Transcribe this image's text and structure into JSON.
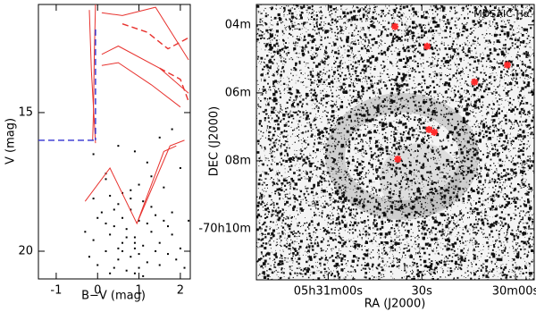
{
  "chart_data": [
    {
      "type": "scatter",
      "xlabel": "B−V (mag)",
      "ylabel": "V (mag)",
      "xlim": [
        -1.43,
        2.24
      ],
      "ylim": [
        21.0,
        11.1
      ],
      "xticks": [
        -1,
        0,
        1,
        2
      ],
      "yticks": [
        15,
        20
      ],
      "series": [
        {
          "kind": "points",
          "color": "#000000",
          "x": [
            0.9,
            0.7,
            1.1,
            0.5,
            1.3,
            0.8,
            0.6,
            1.0,
            1.2,
            0.4,
            0.3,
            1.5,
            1.7,
            0.2,
            0.0,
            -0.1,
            0.1,
            1.9,
            2.0,
            1.4,
            0.9,
            0.7,
            1.1,
            0.5,
            1.3,
            0.8,
            1.6,
            0.6,
            1.0,
            0.3,
            -0.2,
            1.8,
            2.1,
            0.4,
            1.2,
            0.9,
            0.2,
            1.5,
            0.7,
            1.1,
            0.0,
            0.5,
            1.0,
            1.4,
            1.8,
            0.3,
            0.8,
            -0.3,
            1.6,
            0.6,
            0.2,
            0.9,
            1.3,
            -0.1,
            0.4,
            1.7,
            2.2,
            1.0,
            0.6,
            0.8,
            1.8,
            0.5,
            1.2,
            -0.1,
            2.0,
            0.2,
            1.5,
            0.9
          ],
          "y": [
            19.5,
            19.2,
            19.8,
            19.9,
            19.3,
            20.2,
            18.8,
            18.9,
            20.4,
            20.6,
            19.4,
            19.7,
            20.1,
            20.0,
            20.5,
            19.6,
            18.6,
            20.3,
            19.9,
            18.7,
            20.8,
            20.7,
            20.9,
            18.3,
            18.4,
            18.1,
            18.9,
            17.9,
            17.6,
            18.0,
            20.2,
            19.4,
            20.6,
            19.1,
            19.0,
            19.7,
            19.0,
            20.5,
            19.5,
            18.2,
            18.8,
            20.3,
            20.1,
            20.0,
            18.6,
            20.8,
            17.8,
            19.3,
            17.7,
            20.0,
            17.4,
            19.9,
            17.3,
            18.1,
            18.5,
            19.1,
            18.9,
            20.6,
            19.7,
            18.5,
            15.6,
            16.2,
            16.8,
            16.5,
            17.0,
            17.2,
            15.9,
            16.4
          ]
        },
        {
          "kind": "line",
          "color": "#e8322e",
          "dash": false,
          "x": [
            -0.05,
            -0.08,
            -0.1,
            -0.12
          ],
          "y": [
            11.1,
            13.0,
            15.0,
            16.0
          ]
        },
        {
          "kind": "line",
          "color": "#e8322e",
          "dash": false,
          "x": [
            -0.2,
            -0.15,
            -0.05
          ],
          "y": [
            11.3,
            13.5,
            16.1
          ]
        },
        {
          "kind": "line",
          "color": "#e8322e",
          "dash": false,
          "x": [
            0.1,
            0.6,
            1.4,
            2.2
          ],
          "y": [
            11.4,
            11.5,
            11.2,
            13.1
          ]
        },
        {
          "kind": "line",
          "color": "#e8322e",
          "dash": false,
          "x": [
            0.1,
            0.5,
            1.5,
            2.2
          ],
          "y": [
            12.9,
            12.6,
            13.4,
            14.3
          ]
        },
        {
          "kind": "line",
          "color": "#e8322e",
          "dash": false,
          "x": [
            0.1,
            0.5,
            1.3,
            2.0
          ],
          "y": [
            13.3,
            13.2,
            14.0,
            14.8
          ]
        },
        {
          "kind": "line",
          "color": "#e8322e",
          "dash": true,
          "x": [
            0.6,
            1.2,
            1.7,
            2.2
          ],
          "y": [
            11.8,
            12.1,
            12.7,
            12.3
          ]
        },
        {
          "kind": "line",
          "color": "#e8322e",
          "dash": true,
          "x": [
            1.5,
            2.0,
            2.2
          ],
          "y": [
            13.4,
            13.8,
            14.6
          ]
        },
        {
          "kind": "line",
          "color": "#e8322e",
          "dash": false,
          "x": [
            -0.3,
            0.3,
            0.95,
            1.6,
            1.9
          ],
          "y": [
            18.2,
            17.0,
            19.0,
            16.4,
            16.2
          ]
        },
        {
          "kind": "line",
          "color": "#e8322e",
          "dash": false,
          "x": [
            0.95,
            1.75,
            2.1
          ],
          "y": [
            19.0,
            16.2,
            16.0
          ]
        },
        {
          "kind": "line",
          "color": "#3030d0",
          "dash": true,
          "x": [
            -1.43,
            -0.05
          ],
          "y": [
            16.0,
            16.0
          ]
        },
        {
          "kind": "line",
          "color": "#3030d0",
          "dash": true,
          "x": [
            -0.05,
            -0.05
          ],
          "y": [
            12.0,
            16.0
          ]
        }
      ]
    },
    {
      "type": "scatter",
      "annotation": "MOSAIC Hα",
      "xlabel": "RA (J2000)",
      "ylabel": "DEC (J2000)",
      "xlim": [
        1883,
        1794
      ],
      "ylim": [
        11.5,
        3.4
      ],
      "xticks": [
        {
          "value": 1860,
          "label": "05h31m00s"
        },
        {
          "value": 1830,
          "label": "30s"
        },
        {
          "value": 1800,
          "label": "30m00s"
        }
      ],
      "yticks": [
        {
          "value": 4,
          "label": "04m"
        },
        {
          "value": 6,
          "label": "06m"
        },
        {
          "value": 8,
          "label": "08m"
        },
        {
          "value": 10,
          "label": "-70h10m"
        }
      ],
      "series": [
        {
          "kind": "stars",
          "color": "#ff2a2a",
          "x": [
            1838.6,
            1828.3,
            1802.6,
            1813.1,
            1827.7,
            1826.0,
            1837.7
          ],
          "y": [
            4.05,
            4.63,
            5.18,
            5.68,
            7.08,
            7.16,
            7.95
          ]
        }
      ]
    }
  ]
}
